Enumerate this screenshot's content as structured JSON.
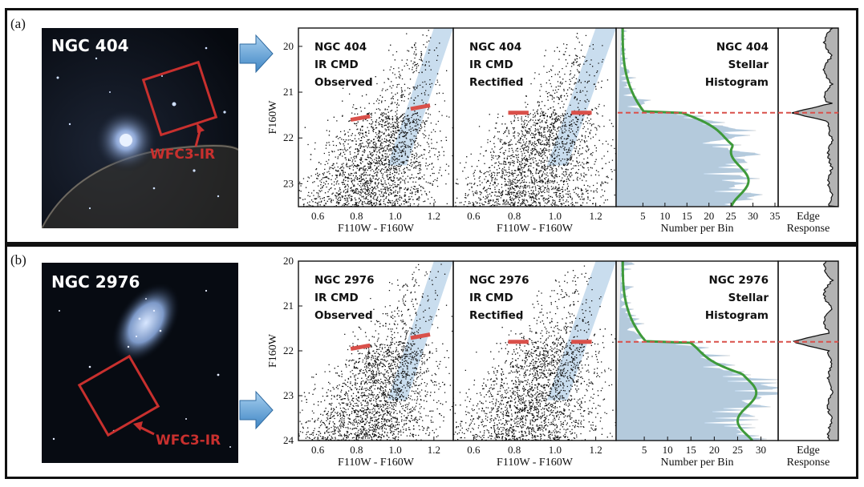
{
  "panels": [
    {
      "label": "(a)",
      "galaxy": "NGC 404",
      "instrument": "WFC3-IR",
      "cmd_observed": [
        "NGC 404",
        "IR CMD",
        "Observed"
      ],
      "cmd_rectified": [
        "NGC 404",
        "IR CMD",
        "Rectified"
      ],
      "histogram": [
        "NGC 404",
        "Stellar",
        "Histogram"
      ],
      "y_axis_label": "F160W",
      "x_axis_cmd_label": "F110W - F160W",
      "x_axis_hist_label": "Number per Bin",
      "edge_label_1": "Edge",
      "edge_label_2": "Response",
      "y_ticks": [
        "20",
        "21",
        "22",
        "23"
      ],
      "x_ticks_cmd": [
        "0.6",
        "0.8",
        "1.0",
        "1.2"
      ],
      "x_ticks_hist": [
        "5",
        "10",
        "15",
        "20",
        "25",
        "30",
        "35"
      ],
      "trgb_mag": 21.45
    },
    {
      "label": "(b)",
      "galaxy": "NGC 2976",
      "instrument": "WFC3-IR",
      "cmd_observed": [
        "NGC 2976",
        "IR CMD",
        "Observed"
      ],
      "cmd_rectified": [
        "NGC 2976",
        "IR CMD",
        "Rectified"
      ],
      "histogram": [
        "NGC 2976",
        "Stellar",
        "Histogram"
      ],
      "y_axis_label": "F160W",
      "x_axis_cmd_label": "F110W - F160W",
      "x_axis_hist_label": "Number per Bin",
      "edge_label_1": "Edge",
      "edge_label_2": "Response",
      "y_ticks": [
        "20",
        "21",
        "22",
        "23",
        "24"
      ],
      "x_ticks_cmd": [
        "0.6",
        "0.8",
        "1.0",
        "1.2"
      ],
      "x_ticks_hist": [
        "5",
        "10",
        "15",
        "20",
        "25",
        "30"
      ],
      "trgb_mag": 21.8
    }
  ],
  "colors": {
    "frame": "#111111",
    "trgb_line": "#d9504a",
    "shade": "#bcd4ea",
    "fit_curve": "#3e9a3a",
    "box_red": "#c8302e",
    "arrow_blue": "#5ea3d8"
  }
}
